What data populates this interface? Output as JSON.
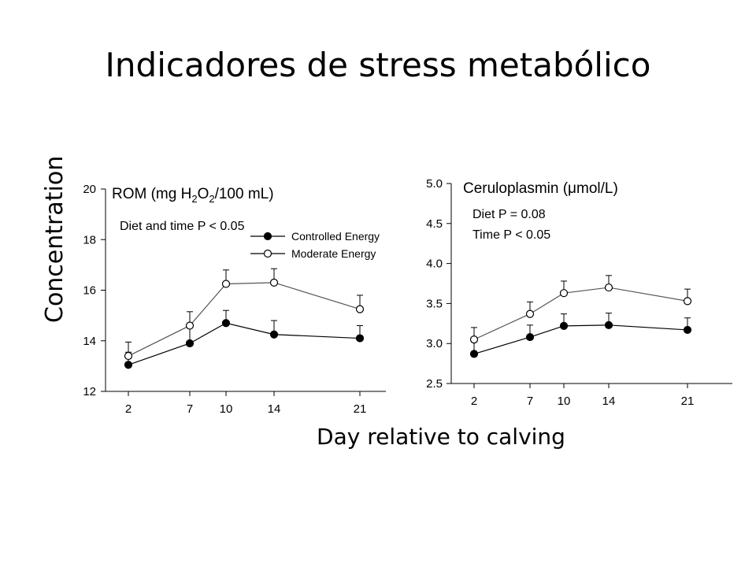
{
  "slide": {
    "title": "Indicadores de stress metabólico",
    "ylabel": "Concentration",
    "xlabel": "Day relative to calving"
  },
  "chart_data": [
    {
      "type": "line",
      "title_parts": [
        "ROM (mg H",
        "2",
        "O",
        "2",
        "/100 mL)"
      ],
      "annotations": [
        "Diet and time P < 0.05"
      ],
      "x": [
        2,
        7,
        10,
        14,
        21
      ],
      "xticks": [
        "2",
        "7",
        "10",
        "14",
        "21"
      ],
      "ylim": [
        12,
        20
      ],
      "yticks": [
        "12",
        "14",
        "16",
        "18",
        "20"
      ],
      "series": [
        {
          "name": "Controlled Energy",
          "marker": "filled",
          "values": [
            13.05,
            13.9,
            14.7,
            14.25,
            14.1
          ],
          "errors": [
            0.5,
            0.65,
            0.5,
            0.55,
            0.5
          ]
        },
        {
          "name": "Moderate Energy",
          "marker": "open",
          "values": [
            13.4,
            14.6,
            16.25,
            16.3,
            15.25
          ],
          "errors": [
            0.55,
            0.55,
            0.55,
            0.55,
            0.55
          ]
        }
      ],
      "legend": "top-right"
    },
    {
      "type": "line",
      "title_parts": [
        "Ceruloplasmin (",
        "μ",
        "mol/L)"
      ],
      "annotations": [
        "Diet P = 0.08",
        "Time P < 0.05"
      ],
      "x": [
        2,
        7,
        10,
        14,
        21
      ],
      "xticks": [
        "2",
        "7",
        "10",
        "14",
        "21"
      ],
      "ylim": [
        2.5,
        5.0
      ],
      "yticks": [
        "2.5",
        "3.0",
        "3.5",
        "4.0",
        "4.5",
        "5.0"
      ],
      "series": [
        {
          "name": "Controlled Energy",
          "marker": "filled",
          "values": [
            2.87,
            3.08,
            3.22,
            3.23,
            3.17
          ],
          "errors": [
            0.15,
            0.15,
            0.15,
            0.15,
            0.15
          ]
        },
        {
          "name": "Moderate Energy",
          "marker": "open",
          "values": [
            3.05,
            3.37,
            3.63,
            3.7,
            3.53
          ],
          "errors": [
            0.15,
            0.15,
            0.15,
            0.15,
            0.15
          ]
        }
      ]
    }
  ]
}
